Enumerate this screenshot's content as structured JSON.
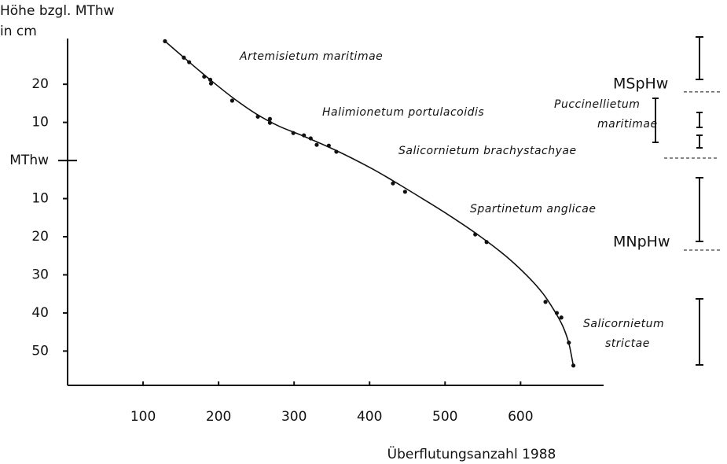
{
  "chart_data": {
    "type": "scatter",
    "y_label_lines": [
      "Höhe bzgl. MThw",
      "in cm"
    ],
    "x_label": "Überflutungsanzahl 1988",
    "xlim": [
      0,
      710
    ],
    "ylim": [
      -59,
      32
    ],
    "xticks": [
      100,
      200,
      300,
      400,
      500,
      600
    ],
    "yticks": [
      {
        "value": 20,
        "label": "20"
      },
      {
        "value": 10,
        "label": "10"
      },
      {
        "value": 0,
        "label": "MThw"
      },
      {
        "value": -10,
        "label": "10"
      },
      {
        "value": -20,
        "label": "20"
      },
      {
        "value": -30,
        "label": "30"
      },
      {
        "value": -40,
        "label": "40"
      },
      {
        "value": -50,
        "label": "50"
      }
    ],
    "series": [
      {
        "mode": "markers",
        "color": "#111",
        "x": [
          129,
          154,
          161,
          181,
          189,
          190,
          218,
          252,
          268,
          268,
          299,
          313,
          322,
          330,
          346,
          356,
          431,
          447,
          540,
          555,
          633,
          648,
          654,
          664,
          670
        ],
        "y": [
          31.3,
          27,
          25.8,
          22,
          21.2,
          20.2,
          15.7,
          11.5,
          10.9,
          9.9,
          7.2,
          6.6,
          5.8,
          4.1,
          3.9,
          2.3,
          -6,
          -8.2,
          -19.4,
          -21.4,
          -37.1,
          -40,
          -41.2,
          -47.8,
          -53.8
        ]
      },
      {
        "mode": "line",
        "color": "#111",
        "x": [
          129,
          160,
          190,
          220,
          250,
          280,
          310,
          356,
          400,
          430,
          470,
          500,
          540,
          580,
          610,
          630,
          645,
          656,
          664,
          670
        ],
        "y": [
          31.3,
          26,
          21,
          16.3,
          12.2,
          9,
          6.6,
          2.6,
          -1.8,
          -5.2,
          -10,
          -13.7,
          -19,
          -25,
          -30.5,
          -35,
          -39.5,
          -43.5,
          -48,
          -54
        ]
      }
    ],
    "reference_lines": [
      {
        "label": "MSpHw",
        "value": 18
      },
      {
        "label": "MNpHw",
        "value": -23.5
      }
    ],
    "annotations": [
      "Artemisietum maritimae",
      "Halimionetum portulacoidis",
      "Salicornietum brachystachyae",
      "Puccinellietum",
      "maritimae",
      "Spartinetum anglicae",
      "Salicornietum",
      "strictae"
    ]
  }
}
